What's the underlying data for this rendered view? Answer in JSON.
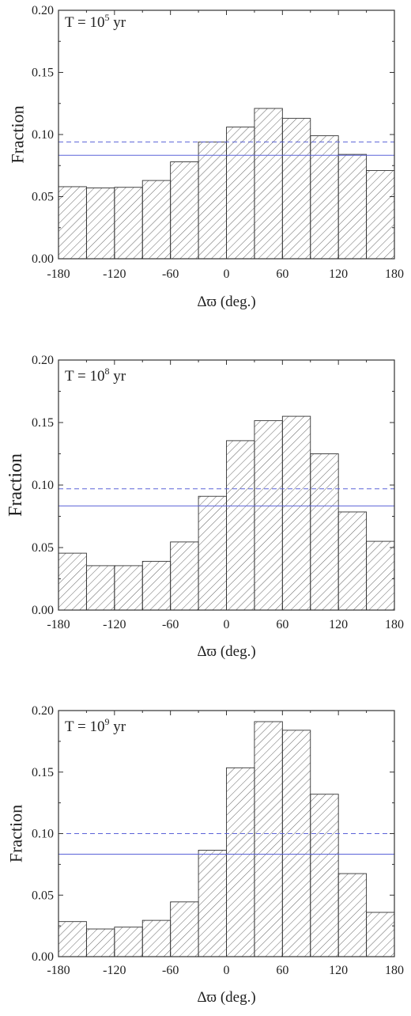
{
  "chart_data": [
    {
      "type": "bar",
      "annotation": {
        "prefix": "T = 10",
        "exponent": "5",
        "suffix": " yr"
      },
      "xlabel": "Δϖ (deg.)",
      "ylabel": "Fraction",
      "xlim": [
        -180,
        180
      ],
      "ylim": [
        0,
        0.2
      ],
      "xticks": [
        "-180",
        "-120",
        "-60",
        "0",
        "60",
        "120",
        "180"
      ],
      "yticks": [
        "0.00",
        "0.05",
        "0.10",
        "0.15",
        "0.20"
      ],
      "bin_edges": [
        -180,
        -150,
        -120,
        -90,
        -60,
        -30,
        0,
        30,
        60,
        90,
        120,
        150,
        180
      ],
      "values": [
        0.058,
        0.057,
        0.0575,
        0.063,
        0.078,
        0.094,
        0.106,
        0.121,
        0.113,
        0.099,
        0.084,
        0.071
      ],
      "reference_lines": [
        {
          "y": 0.0833,
          "style": "solid"
        },
        {
          "y": 0.094,
          "style": "dashed"
        }
      ]
    },
    {
      "type": "bar",
      "annotation": {
        "prefix": "T = 10",
        "exponent": "8",
        "suffix": " yr"
      },
      "xlabel": "Δϖ (deg.)",
      "ylabel": "Fraction",
      "xlim": [
        -180,
        180
      ],
      "ylim": [
        0,
        0.2
      ],
      "xticks": [
        "-180",
        "-120",
        "-60",
        "0",
        "60",
        "120",
        "180"
      ],
      "yticks": [
        "0.00",
        "0.05",
        "0.10",
        "0.15",
        "0.20"
      ],
      "bin_edges": [
        -180,
        -150,
        -120,
        -90,
        -60,
        -30,
        0,
        30,
        60,
        90,
        120,
        150,
        180
      ],
      "values": [
        0.0455,
        0.0355,
        0.0355,
        0.039,
        0.0545,
        0.091,
        0.1355,
        0.1515,
        0.155,
        0.125,
        0.0785,
        0.055
      ],
      "reference_lines": [
        {
          "y": 0.0833,
          "style": "solid"
        },
        {
          "y": 0.097,
          "style": "dashed"
        }
      ]
    },
    {
      "type": "bar",
      "annotation": {
        "prefix": "T = 10",
        "exponent": "9",
        "suffix": " yr"
      },
      "xlabel": "Δϖ (deg.)",
      "ylabel": "Fraction",
      "xlim": [
        -180,
        180
      ],
      "ylim": [
        0,
        0.2
      ],
      "xticks": [
        "-180",
        "-120",
        "-60",
        "0",
        "60",
        "120",
        "180"
      ],
      "yticks": [
        "0.00",
        "0.05",
        "0.10",
        "0.15",
        "0.20"
      ],
      "bin_edges": [
        -180,
        -150,
        -120,
        -90,
        -60,
        -30,
        0,
        30,
        60,
        90,
        120,
        150,
        180
      ],
      "values": [
        0.0285,
        0.0225,
        0.024,
        0.0295,
        0.0445,
        0.0865,
        0.1535,
        0.191,
        0.184,
        0.132,
        0.0675,
        0.036
      ],
      "reference_lines": [
        {
          "y": 0.0833,
          "style": "solid"
        },
        {
          "y": 0.1,
          "style": "dashed"
        }
      ]
    }
  ],
  "colors": {
    "bar_stroke": "#333333",
    "hatch": "#555555",
    "reference_line": "#5b63d8",
    "axis": "#333333"
  }
}
